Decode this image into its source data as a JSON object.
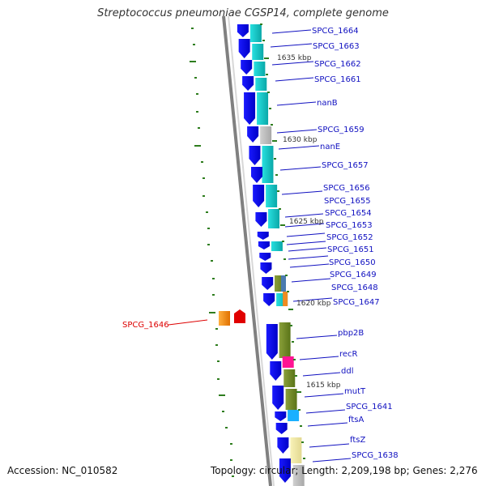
{
  "title": "Streptococcus pneumoniae CGSP14, complete genome",
  "footer": {
    "accession": "Accession: NC_010582",
    "summary": "Topology: circular; Length: 2,209,198 bp; Genes: 2,276"
  },
  "ruler": [
    "1635 kbp",
    "1630 kbp",
    "1625 kbp",
    "1620 kbp",
    "1615 kbp"
  ],
  "genes_forward_strand": [
    "SPCG_1664",
    "SPCG_1663",
    "SPCG_1662",
    "SPCG_1661",
    "nanB",
    "SPCG_1659",
    "nanE",
    "SPCG_1657",
    "SPCG_1656",
    "SPCG_1655",
    "SPCG_1654",
    "SPCG_1653",
    "SPCG_1652",
    "SPCG_1651",
    "SPCG_1650",
    "SPCG_1649",
    "SPCG_1648",
    "SPCG_1647",
    "pbp2B",
    "recR",
    "ddl",
    "mutT",
    "SPCG_1641",
    "ftsA",
    "ftsZ",
    "SPCG_1638"
  ],
  "genes_reverse_strand": [
    "SPCG_1646"
  ],
  "colors": {
    "gene_arrow": "#0a0af0",
    "label_forward": "#1010c0",
    "label_reverse": "#dd0000",
    "backbone": "#808080",
    "gc_tick": "#2e7d1e"
  }
}
